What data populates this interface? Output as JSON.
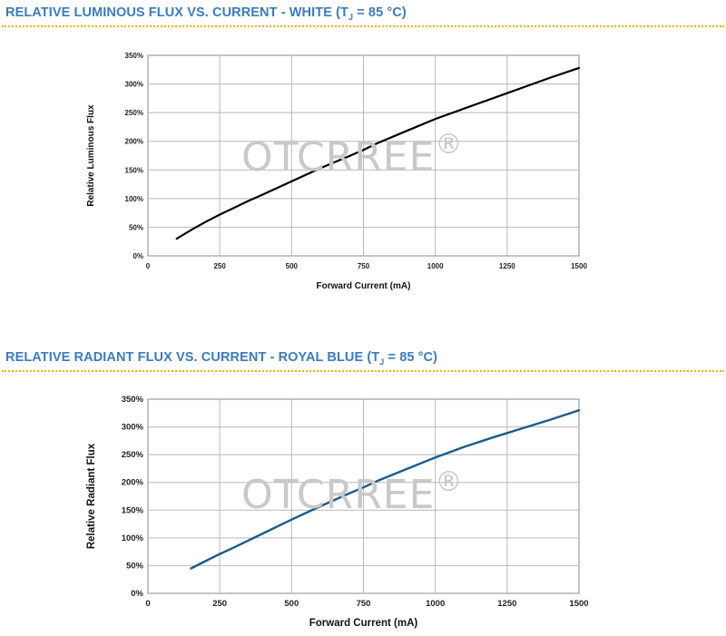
{
  "watermark_text": "OTCRREE",
  "watermark_reg": "®",
  "chart_data": [
    {
      "type": "line",
      "title_main": "RELATIVE LUMINOUS FLUX VS. CURRENT - WHITE (T",
      "title_sub": "J",
      "title_end": " = 85 °C)",
      "xlabel": "Forward Current (mA)",
      "ylabel": "Relative Luminous Flux",
      "xlim": [
        0,
        1500
      ],
      "ylim": [
        0,
        350
      ],
      "xticks": [
        "0",
        "250",
        "500",
        "750",
        "1000",
        "1250",
        "1500"
      ],
      "yticks": [
        "0%",
        "50%",
        "100%",
        "150%",
        "200%",
        "250%",
        "300%",
        "350%"
      ],
      "grid": true,
      "color": "#000000",
      "series": [
        {
          "x": [
            100,
            150,
            200,
            250,
            300,
            350,
            400,
            500,
            600,
            700,
            750,
            800,
            900,
            1000,
            1100,
            1200,
            1250,
            1300,
            1400,
            1500
          ],
          "y": [
            30,
            45,
            59,
            72,
            84,
            96,
            107,
            130,
            153,
            174,
            185,
            197,
            218,
            239,
            257,
            275,
            284,
            293,
            311,
            328
          ]
        }
      ]
    },
    {
      "type": "line",
      "title_main": "RELATIVE RADIANT FLUX VS. CURRENT - ROYAL BLUE (T",
      "title_sub": "J",
      "title_end": " = 85 °C)",
      "xlabel": "Forward Current (mA)",
      "ylabel": "Relative Radiant Flux",
      "xlim": [
        0,
        1500
      ],
      "ylim": [
        0,
        350
      ],
      "xticks": [
        "0",
        "250",
        "500",
        "750",
        "1000",
        "1250",
        "1500"
      ],
      "yticks": [
        "0%",
        "50%",
        "100%",
        "150%",
        "200%",
        "250%",
        "300%",
        "350%"
      ],
      "grid": true,
      "color": "#1a5c8c",
      "series": [
        {
          "x": [
            150,
            200,
            250,
            300,
            400,
            500,
            600,
            700,
            750,
            800,
            900,
            1000,
            1100,
            1200,
            1250,
            1300,
            1400,
            1500
          ],
          "y": [
            45,
            58,
            71,
            83,
            108,
            133,
            157,
            180,
            191,
            203,
            224,
            245,
            264,
            281,
            289,
            297,
            313,
            330
          ]
        }
      ]
    }
  ]
}
